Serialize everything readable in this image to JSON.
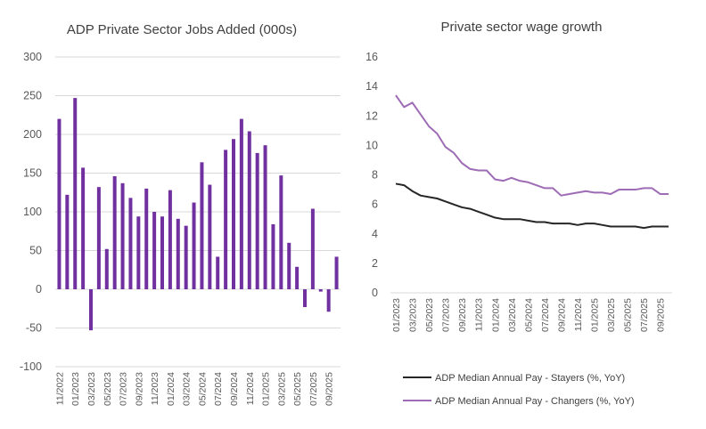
{
  "chart_data": [
    {
      "type": "bar",
      "title": "ADP Private Sector Jobs Added (000s)",
      "xlabel": "",
      "ylabel": "",
      "ylim": [
        -100,
        300
      ],
      "yticks": [
        -100,
        -50,
        0,
        50,
        100,
        150,
        200,
        250,
        300
      ],
      "color": "#7030a0",
      "grid": true,
      "categories": [
        "11/2022",
        "12/2022",
        "01/2023",
        "02/2023",
        "03/2023",
        "04/2023",
        "05/2023",
        "06/2023",
        "07/2023",
        "08/2023",
        "09/2023",
        "10/2023",
        "11/2023",
        "12/2023",
        "01/2024",
        "02/2024",
        "03/2024",
        "04/2024",
        "05/2024",
        "06/2024",
        "07/2024",
        "08/2024",
        "09/2024",
        "10/2024",
        "11/2024",
        "12/2024",
        "01/2025",
        "02/2025",
        "03/2025",
        "04/2025",
        "05/2025",
        "06/2025",
        "07/2025",
        "08/2025",
        "09/2025",
        "10/2025"
      ],
      "values": [
        220,
        122,
        247,
        157,
        -53,
        132,
        52,
        146,
        137,
        118,
        94,
        130,
        100,
        94,
        128,
        91,
        82,
        112,
        164,
        135,
        42,
        180,
        194,
        220,
        204,
        176,
        186,
        84,
        147,
        60,
        29,
        -23,
        104,
        -3,
        -29,
        42
      ],
      "xtick_labels": [
        "11/2022",
        "01/2023",
        "03/2023",
        "05/2023",
        "07/2023",
        "09/2023",
        "11/2023",
        "01/2024",
        "03/2024",
        "05/2024",
        "07/2024",
        "09/2024",
        "11/2024",
        "01/2025",
        "03/2025",
        "05/2025",
        "07/2025",
        "09/2025"
      ]
    },
    {
      "type": "line",
      "title": "Private sector wage growth",
      "xlabel": "",
      "ylabel": "",
      "ylim": [
        0,
        16
      ],
      "yticks": [
        0,
        2,
        4,
        6,
        8,
        10,
        12,
        14,
        16
      ],
      "grid": false,
      "legend_position": "bottom",
      "x": [
        "01/2023",
        "02/2023",
        "03/2023",
        "04/2023",
        "05/2023",
        "06/2023",
        "07/2023",
        "08/2023",
        "09/2023",
        "10/2023",
        "11/2023",
        "12/2023",
        "01/2024",
        "02/2024",
        "03/2024",
        "04/2024",
        "05/2024",
        "06/2024",
        "07/2024",
        "08/2024",
        "09/2024",
        "10/2024",
        "11/2024",
        "12/2024",
        "01/2025",
        "02/2025",
        "03/2025",
        "04/2025",
        "05/2025",
        "06/2025",
        "07/2025",
        "08/2025",
        "09/2025",
        "10/2025"
      ],
      "xtick_labels": [
        "01/2023",
        "03/2023",
        "05/2023",
        "07/2023",
        "09/2023",
        "11/2023",
        "01/2024",
        "03/2024",
        "05/2024",
        "07/2024",
        "09/2024",
        "11/2024",
        "01/2025",
        "03/2025",
        "05/2025",
        "07/2025",
        "09/2025"
      ],
      "series": [
        {
          "name": "ADP Median Annual Pay - Stayers (%, YoY)",
          "color": "#262626",
          "values": [
            7.4,
            7.3,
            6.9,
            6.6,
            6.5,
            6.4,
            6.2,
            6.0,
            5.8,
            5.7,
            5.5,
            5.3,
            5.1,
            5.0,
            5.0,
            5.0,
            4.9,
            4.8,
            4.8,
            4.7,
            4.7,
            4.7,
            4.6,
            4.7,
            4.7,
            4.6,
            4.5,
            4.5,
            4.5,
            4.5,
            4.4,
            4.5,
            4.5,
            4.5
          ]
        },
        {
          "name": "ADP Median Annual Pay - Changers (%, YoY)",
          "color": "#9e6bb5",
          "values": [
            13.4,
            12.6,
            12.9,
            12.1,
            11.3,
            10.8,
            9.9,
            9.5,
            8.8,
            8.4,
            8.3,
            8.3,
            7.7,
            7.6,
            7.8,
            7.6,
            7.5,
            7.3,
            7.1,
            7.1,
            6.6,
            6.7,
            6.8,
            6.9,
            6.8,
            6.8,
            6.7,
            7.0,
            7.0,
            7.0,
            7.1,
            7.1,
            6.7,
            6.7
          ]
        }
      ]
    }
  ]
}
